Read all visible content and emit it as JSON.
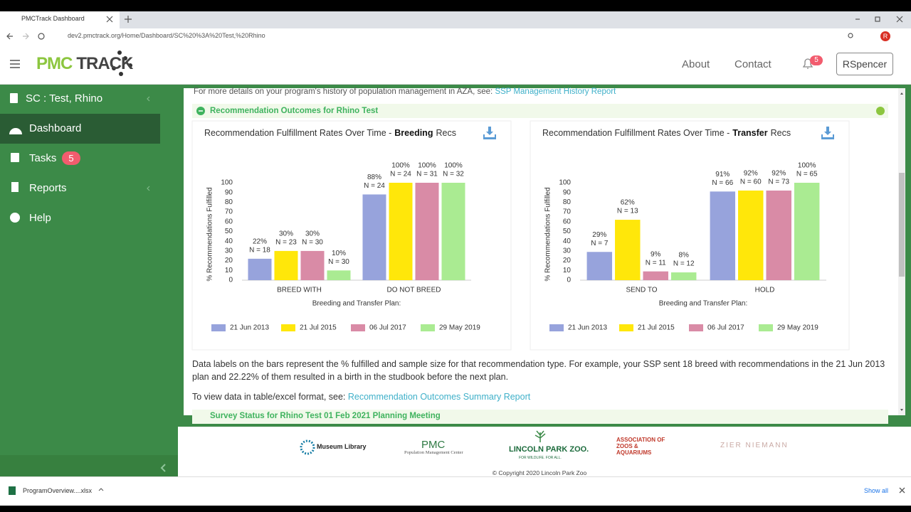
{
  "browser": {
    "tab_title": "PMCTrack Dashboard",
    "url": "dev2.pmctrack.org/Home/Dashboard/SC%20%3A%20Test,%20Rhino",
    "avatar": "R"
  },
  "header": {
    "logo_left": "PMC",
    "logo_right": "TRACK",
    "nav": [
      "About",
      "Contact"
    ],
    "notifications": "5",
    "user": "RSpencer"
  },
  "sidebar": {
    "program": "SC : Test, Rhino",
    "items": [
      {
        "label": "Dashboard"
      },
      {
        "label": "Tasks",
        "badge": "5"
      },
      {
        "label": "Reports"
      },
      {
        "label": "Help"
      }
    ]
  },
  "content": {
    "intro": "For more details on your program's history of population management in AZA, see:",
    "intro_link": "SSP Management History Report",
    "section_title": "Recommendation Outcomes for Rhino Test",
    "note": "Data labels on the bars represent the % fulfilled and sample size for that recommendation type. For example, your SSP sent 18 breed with recommendations in the 21 Jun 2013 plan and 22.22% of them resulted in a birth in the studbook before the next plan.",
    "table_prompt": "To view data in table/excel format, see:",
    "table_link": "Recommendation Outcomes Summary Report",
    "next_section_title": "Survey Status for Rhino Test 01 Feb 2021 Planning Meeting"
  },
  "chart_data": [
    {
      "type": "bar",
      "title": "Recommendation Fulfillment Rates Over Time -",
      "title_emphasis": "Breeding",
      "title_suffix": "Recs",
      "ylabel": "% Recommendations Fulfilled",
      "xlabel": "Breeding and Transfer Plan:",
      "categories": [
        "BREED WITH",
        "DO NOT BREED"
      ],
      "ylim": [
        0,
        100
      ],
      "yticks": [
        0,
        10,
        20,
        30,
        40,
        50,
        60,
        70,
        80,
        90,
        100
      ],
      "legend": "bottom",
      "series": [
        {
          "name": "21 Jun 2013",
          "color": "#97a3dc",
          "values": [
            22,
            88
          ],
          "value_labels": [
            "22%",
            "88%"
          ],
          "sample_labels": [
            "N = 18",
            "N = 24"
          ]
        },
        {
          "name": "21 Jul 2015",
          "color": "#ffe70a",
          "values": [
            30,
            100
          ],
          "value_labels": [
            "30%",
            "100%"
          ],
          "sample_labels": [
            "N = 23",
            "N = 24"
          ]
        },
        {
          "name": "06 Jul 2017",
          "color": "#d98ba6",
          "values": [
            30,
            100
          ],
          "value_labels": [
            "30%",
            "100%"
          ],
          "sample_labels": [
            "N = 30",
            "N = 31"
          ]
        },
        {
          "name": "29 May 2019",
          "color": "#aaeb92",
          "values": [
            10,
            100
          ],
          "value_labels": [
            "10%",
            "100%"
          ],
          "sample_labels": [
            "N = 30",
            "N = 32"
          ]
        }
      ]
    },
    {
      "type": "bar",
      "title": "Recommendation Fulfillment Rates Over Time -",
      "title_emphasis": "Transfer",
      "title_suffix": "Recs",
      "ylabel": "% Recommendations Fulfilled",
      "xlabel": "Breeding and Transfer Plan:",
      "categories": [
        "SEND TO",
        "HOLD"
      ],
      "ylim": [
        0,
        100
      ],
      "yticks": [
        0,
        10,
        20,
        30,
        40,
        50,
        60,
        70,
        80,
        90,
        100
      ],
      "legend": "bottom",
      "series": [
        {
          "name": "21 Jun 2013",
          "color": "#97a3dc",
          "values": [
            29,
            91
          ],
          "value_labels": [
            "29%",
            "91%"
          ],
          "sample_labels": [
            "N = 7",
            "N = 66"
          ]
        },
        {
          "name": "21 Jul 2015",
          "color": "#ffe70a",
          "values": [
            62,
            92
          ],
          "value_labels": [
            "62%",
            "92%"
          ],
          "sample_labels": [
            "N = 13",
            "N = 60"
          ]
        },
        {
          "name": "06 Jul 2017",
          "color": "#d98ba6",
          "values": [
            9,
            92
          ],
          "value_labels": [
            "9%",
            "92%"
          ],
          "sample_labels": [
            "N = 11",
            "N = 73"
          ]
        },
        {
          "name": "29 May 2019",
          "color": "#aaeb92",
          "values": [
            8,
            100
          ],
          "value_labels": [
            "8%",
            "100%"
          ],
          "sample_labels": [
            "N = 12",
            "N = 65"
          ]
        }
      ]
    }
  ],
  "footer": {
    "logos": [
      "Museum Library",
      "PMC",
      "Population Management Center",
      "LINCOLN PARK ZOO.",
      "FOR WILDLIFE. FOR ALL.",
      "ASSOCIATION OF ZOOS & AQUARIUMS",
      "ZIER NIEMANN"
    ],
    "copyright": "© Copyright 2020 Lincoln Park Zoo"
  },
  "downloads": {
    "file": "ProgramOverview....xlsx",
    "show_all": "Show all"
  }
}
